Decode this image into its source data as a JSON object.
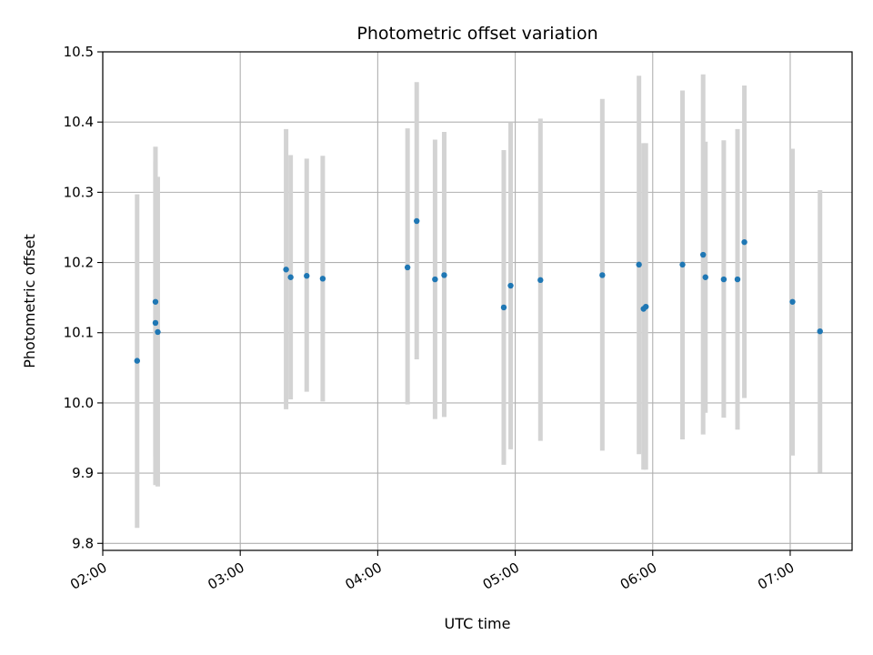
{
  "chart_data": {
    "type": "scatter",
    "title": "Photometric offset variation",
    "xlabel": "UTC time",
    "ylabel": "Photometric offset",
    "x_ticks": [
      "02:00",
      "03:00",
      "04:00",
      "05:00",
      "06:00",
      "07:00"
    ],
    "y_ticks": [
      "9.8",
      "9.9",
      "10.0",
      "10.1",
      "10.2",
      "10.3",
      "10.4",
      "10.5"
    ],
    "xlim": [
      "02:00",
      "07:27"
    ],
    "ylim": [
      9.79,
      10.5
    ],
    "grid": true,
    "colors": {
      "points": "#1f77b4",
      "error_bars": "#d3d3d3",
      "grid": "#b0b0b0"
    },
    "series": [
      {
        "points": [
          {
            "x": "02:15",
            "y": 10.06,
            "low": 9.822,
            "high": 10.297
          },
          {
            "x": "02:23",
            "y": 10.144,
            "low": 9.924,
            "high": 10.365
          },
          {
            "x": "02:23",
            "y": 10.114,
            "low": 9.883,
            "high": 10.344
          },
          {
            "x": "02:24",
            "y": 10.101,
            "low": 9.881,
            "high": 10.322
          },
          {
            "x": "03:20",
            "y": 10.19,
            "low": 9.991,
            "high": 10.39
          },
          {
            "x": "03:22",
            "y": 10.179,
            "low": 10.005,
            "high": 10.353
          },
          {
            "x": "03:29",
            "y": 10.181,
            "low": 10.016,
            "high": 10.348
          },
          {
            "x": "03:36",
            "y": 10.177,
            "low": 10.002,
            "high": 10.352
          },
          {
            "x": "04:13",
            "y": 10.193,
            "low": 9.998,
            "high": 10.391
          },
          {
            "x": "04:17",
            "y": 10.259,
            "low": 10.062,
            "high": 10.457
          },
          {
            "x": "04:25",
            "y": 10.176,
            "low": 9.977,
            "high": 10.375
          },
          {
            "x": "04:29",
            "y": 10.182,
            "low": 9.98,
            "high": 10.386
          },
          {
            "x": "04:55",
            "y": 10.136,
            "low": 9.912,
            "high": 10.36
          },
          {
            "x": "04:58",
            "y": 10.167,
            "low": 9.934,
            "high": 10.399
          },
          {
            "x": "05:11",
            "y": 10.175,
            "low": 9.946,
            "high": 10.405
          },
          {
            "x": "05:38",
            "y": 10.182,
            "low": 9.932,
            "high": 10.433
          },
          {
            "x": "05:54",
            "y": 10.197,
            "low": 9.927,
            "high": 10.466
          },
          {
            "x": "05:56",
            "y": 10.134,
            "low": 9.905,
            "high": 10.37
          },
          {
            "x": "05:57",
            "y": 10.137,
            "low": 9.905,
            "high": 10.37
          },
          {
            "x": "06:13",
            "y": 10.197,
            "low": 9.948,
            "high": 10.445
          },
          {
            "x": "06:22",
            "y": 10.211,
            "low": 9.955,
            "high": 10.468
          },
          {
            "x": "06:23",
            "y": 10.179,
            "low": 9.986,
            "high": 10.372
          },
          {
            "x": "06:31",
            "y": 10.176,
            "low": 9.979,
            "high": 10.374
          },
          {
            "x": "06:37",
            "y": 10.176,
            "low": 9.962,
            "high": 10.39
          },
          {
            "x": "06:40",
            "y": 10.229,
            "low": 10.007,
            "high": 10.452
          },
          {
            "x": "07:01",
            "y": 10.144,
            "low": 9.925,
            "high": 10.362
          },
          {
            "x": "07:13",
            "y": 10.102,
            "low": 9.901,
            "high": 10.303
          }
        ]
      }
    ]
  }
}
